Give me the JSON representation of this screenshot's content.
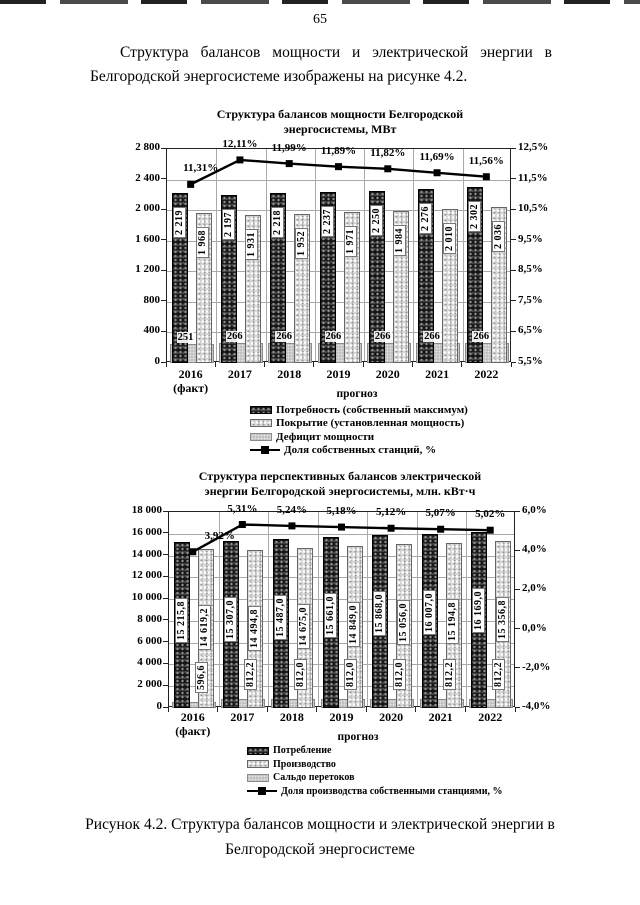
{
  "page": {
    "number": "65"
  },
  "intro": {
    "text": "Структура балансов мощности и электрической энергии в Белгородской энергосистеме изображены на рисунке 4.2."
  },
  "caption": {
    "text": "Рисунок 4.2. Структура балансов мощности и электрической энергии в Белгородской энергосистеме"
  },
  "chart_data": [
    {
      "type": "bar",
      "title_lines": [
        "Структура балансов мощности Белгородской",
        "энергосистемы, МВт"
      ],
      "categories": [
        [
          "2016",
          "(факт)"
        ],
        [
          "2017"
        ],
        [
          "2018"
        ],
        [
          "2019"
        ],
        [
          "2020"
        ],
        [
          "2021"
        ],
        [
          "2022"
        ]
      ],
      "x_axis_note": "прогноз",
      "left_axis": {
        "min": 0,
        "max": 2800,
        "step": 400,
        "labels": [
          "0",
          "400",
          "800",
          "1 200",
          "1 600",
          "2 000",
          "2 400",
          "2 800"
        ]
      },
      "right_axis": {
        "min": 5.5,
        "max": 12.5,
        "labels": [
          "5,5%",
          "6,5%",
          "7,5%",
          "8,5%",
          "9,5%",
          "10,5%",
          "11,5%",
          "12,5%"
        ]
      },
      "grid": true,
      "legend_position": "bottom",
      "series": [
        {
          "name": "Потребность (собственный максимум)",
          "kind": "bar",
          "role": "dark",
          "values": [
            2219,
            2197,
            2218,
            2237,
            2250,
            2276,
            2302
          ],
          "labels": [
            "2 219",
            "2 197",
            "2 218",
            "2 237",
            "2 250",
            "2 276",
            "2 302"
          ]
        },
        {
          "name": "Покрытие (установленная мощность)",
          "kind": "bar",
          "role": "light",
          "values": [
            1968,
            1931,
            1952,
            1971,
            1984,
            2010,
            2036
          ],
          "labels": [
            "1 968",
            "1 931",
            "1 952",
            "1 971",
            "1 984",
            "2 010",
            "2 036"
          ]
        },
        {
          "name": "Дефицит мощности",
          "kind": "bar",
          "role": "wide",
          "values": [
            251,
            266,
            266,
            266,
            266,
            266,
            266
          ],
          "labels": [
            "251",
            "266",
            "266",
            "266",
            "266",
            "266",
            "266"
          ]
        },
        {
          "name": "Доля собственных станций, %",
          "kind": "line",
          "axis": "right",
          "values": [
            11.31,
            12.11,
            11.99,
            11.89,
            11.82,
            11.69,
            11.56
          ],
          "labels": [
            "11,31%",
            "12,11%",
            "11,99%",
            "11,89%",
            "11,82%",
            "11,69%",
            "11,56%"
          ]
        }
      ]
    },
    {
      "type": "bar",
      "title_lines": [
        "Структура перспективных балансов электрической",
        "энергии Белгородской энергосистемы, млн. кВт·ч"
      ],
      "categories": [
        [
          "2016",
          "(факт)"
        ],
        [
          "2017"
        ],
        [
          "2018"
        ],
        [
          "2019"
        ],
        [
          "2020"
        ],
        [
          "2021"
        ],
        [
          "2022"
        ]
      ],
      "x_axis_note": "прогноз",
      "left_axis": {
        "min": 0,
        "max": 18000,
        "step": 2000,
        "labels": [
          "0",
          "2 000",
          "4 000",
          "6 000",
          "8 000",
          "10 000",
          "12 000",
          "14 000",
          "16 000",
          "18 000"
        ]
      },
      "right_axis": {
        "min": -4,
        "max": 6,
        "labels": [
          "-4,0%",
          "-2,0%",
          "0,0%",
          "2,0%",
          "4,0%",
          "6,0%"
        ]
      },
      "grid": true,
      "legend_position": "bottom",
      "series": [
        {
          "name": "Потребление",
          "kind": "bar",
          "role": "dark",
          "values": [
            15215.8,
            15307.0,
            15487.0,
            15661.0,
            15868.0,
            16007.0,
            16169.0
          ],
          "labels": [
            "15 215,8",
            "15 307,0",
            "15 487,0",
            "15 661,0",
            "15 868,0",
            "16 007,0",
            "16 169,0"
          ]
        },
        {
          "name": "Производство",
          "kind": "bar",
          "role": "light",
          "values": [
            14619.2,
            14494.8,
            14675.0,
            14849.0,
            15056.0,
            15194.8,
            15356.8
          ],
          "labels": [
            "14 619,2",
            "14 494,8",
            "14 675,0",
            "14 849,0",
            "15 056,0",
            "15 194,8",
            "15 356,8"
          ]
        },
        {
          "name": "Сальдо перетоков",
          "kind": "bar",
          "role": "wide",
          "values": [
            596.6,
            812.2,
            812.0,
            812.0,
            812.0,
            812.2,
            812.2
          ],
          "labels": [
            "596,6",
            "812,2",
            "812,0",
            "812,0",
            "812,0",
            "812,2",
            "812,2"
          ]
        },
        {
          "name": "Доля производства собственными станциями, %",
          "kind": "line",
          "axis": "right",
          "values": [
            3.92,
            5.31,
            5.24,
            5.18,
            5.12,
            5.07,
            5.02
          ],
          "labels": [
            "3,92%",
            "5,31%",
            "5,24%",
            "5,18%",
            "5,12%",
            "5,07%",
            "5,02%"
          ]
        }
      ]
    }
  ]
}
